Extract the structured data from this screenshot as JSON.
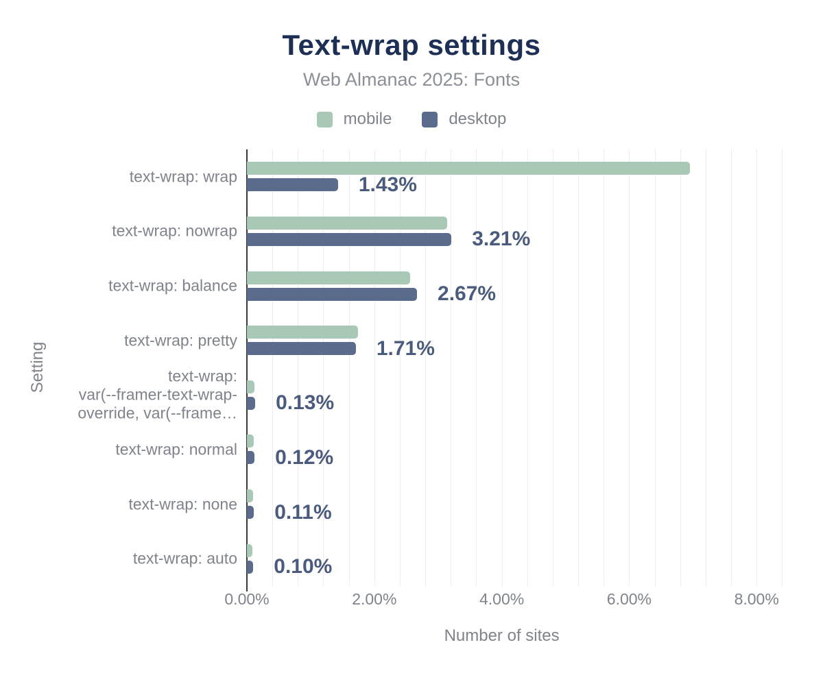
{
  "title": "Text-wrap settings",
  "subtitle": "Web Almanac 2025: Fonts",
  "legend": {
    "items": [
      {
        "label": "mobile",
        "color": "#a9c8b6"
      },
      {
        "label": "desktop",
        "color": "#5a6b8c"
      }
    ]
  },
  "colors": {
    "title": "#1e2f55",
    "axis_text": "#7e838c",
    "annotation": "#4a5b7e",
    "gridline": "#ededee",
    "axis_line": "#33373e",
    "background": "#ffffff"
  },
  "chart_data": {
    "type": "bar",
    "orientation": "horizontal",
    "title": "Text-wrap settings",
    "subtitle": "Web Almanac 2025: Fonts",
    "xlabel": "Number of sites",
    "ylabel": "Setting",
    "xlim": [
      0,
      8.46
    ],
    "grid": true,
    "grid_step": 0.4,
    "legend_position": "top",
    "x_ticks": [
      0,
      2,
      4,
      6,
      8
    ],
    "x_tick_labels": [
      "0.00%",
      "2.00%",
      "4.00%",
      "6.00%",
      "8.00%"
    ],
    "categories": [
      [
        "text-wrap: wrap"
      ],
      [
        "text-wrap: nowrap"
      ],
      [
        "text-wrap: balance"
      ],
      [
        "text-wrap: pretty"
      ],
      [
        "text-wrap:",
        "var(--framer-text-wrap-",
        "override, var(--frame…"
      ],
      [
        "text-wrap: normal"
      ],
      [
        "text-wrap: none"
      ],
      [
        "text-wrap: auto"
      ]
    ],
    "series": [
      {
        "name": "mobile",
        "color": "#a9c8b6",
        "values": [
          6.95,
          3.14,
          2.56,
          1.74,
          0.12,
          0.11,
          0.1,
          0.09
        ]
      },
      {
        "name": "desktop",
        "color": "#5a6b8c",
        "values": [
          1.43,
          3.21,
          2.67,
          1.71,
          0.13,
          0.12,
          0.11,
          0.1
        ]
      }
    ],
    "annotations": [
      "1.43%",
      "3.21%",
      "2.67%",
      "1.71%",
      "0.13%",
      "0.12%",
      "0.11%",
      "0.10%"
    ],
    "annotation_series": "desktop"
  }
}
